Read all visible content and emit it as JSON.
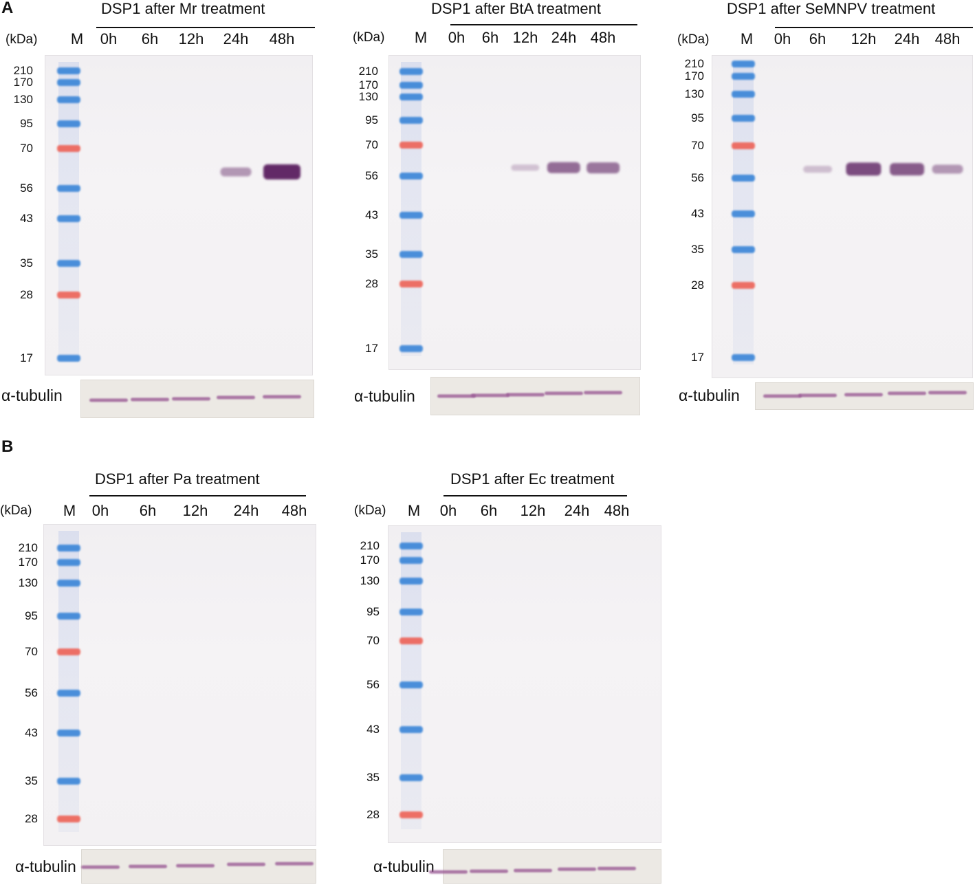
{
  "panels": [
    {
      "id": "A",
      "label": "A"
    },
    {
      "id": "B",
      "label": "B"
    }
  ],
  "ladder": {
    "marker_label": "M",
    "unit_label": "(kDa)",
    "colors": {
      "blue": "#2f7fd6",
      "red": "#ee5a4d"
    }
  },
  "tubulin_label": "α-tubulin",
  "blots": [
    {
      "title": "DSP1 after Mr treatment",
      "lanes": [
        "0h",
        "6h",
        "12h",
        "24h",
        "48h"
      ],
      "mw_labels": [
        "210",
        "170",
        "130",
        "95",
        "70",
        "56",
        "43",
        "35",
        "28",
        "17"
      ],
      "dsp1_intensity": [
        0,
        0,
        0,
        0.35,
        1.0
      ]
    },
    {
      "title": "DSP1 after BtA treatment",
      "lanes": [
        "0h",
        "6h",
        "12h",
        "24h",
        "48h"
      ],
      "mw_labels": [
        "210",
        "170",
        "130",
        "95",
        "70",
        "56",
        "43",
        "35",
        "28",
        "17"
      ],
      "dsp1_intensity": [
        0,
        0,
        0.1,
        0.6,
        0.55
      ]
    },
    {
      "title": "DSP1 after SeMNPV treatment",
      "lanes": [
        "0h",
        "6h",
        "12h",
        "24h",
        "48h"
      ],
      "mw_labels": [
        "210",
        "170",
        "130",
        "95",
        "70",
        "56",
        "43",
        "35",
        "28",
        "17"
      ],
      "dsp1_intensity": [
        0,
        0.12,
        0.8,
        0.7,
        0.35
      ]
    },
    {
      "title": "DSP1 after Pa treatment",
      "lanes": [
        "0h",
        "6h",
        "12h",
        "24h",
        "48h"
      ],
      "mw_labels": [
        "210",
        "170",
        "130",
        "95",
        "70",
        "56",
        "43",
        "35",
        "28"
      ],
      "dsp1_intensity": [
        0,
        0,
        0,
        0,
        0
      ]
    },
    {
      "title": "DSP1 after Ec treatment",
      "lanes": [
        "0h",
        "6h",
        "12h",
        "24h",
        "48h"
      ],
      "mw_labels": [
        "210",
        "170",
        "130",
        "95",
        "70",
        "56",
        "43",
        "35",
        "28"
      ],
      "dsp1_intensity": [
        0,
        0,
        0,
        0,
        0
      ]
    }
  ]
}
